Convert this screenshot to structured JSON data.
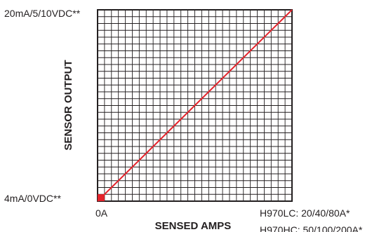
{
  "chart_data": {
    "type": "line",
    "title": "",
    "xlabel": "SENSED AMPS",
    "ylabel": "SENSOR OUTPUT",
    "x_tick_labels": {
      "min": "0A",
      "max_lines": [
        "H970LC: 20/40/80A*",
        "H970HC: 50/100/200A*"
      ]
    },
    "y_tick_labels": {
      "min": "4mA/0VDC**",
      "max": "20mA/5/10VDC**"
    },
    "xlim": [
      0,
      1
    ],
    "ylim": [
      0,
      1
    ],
    "grid": true,
    "grid_divisions": 28,
    "series": [
      {
        "x": [
          0,
          1
        ],
        "y": [
          0,
          1
        ],
        "color": "#e4232b"
      }
    ],
    "origin_marker_color": "#e4232b",
    "grid_color": "#231f20"
  }
}
